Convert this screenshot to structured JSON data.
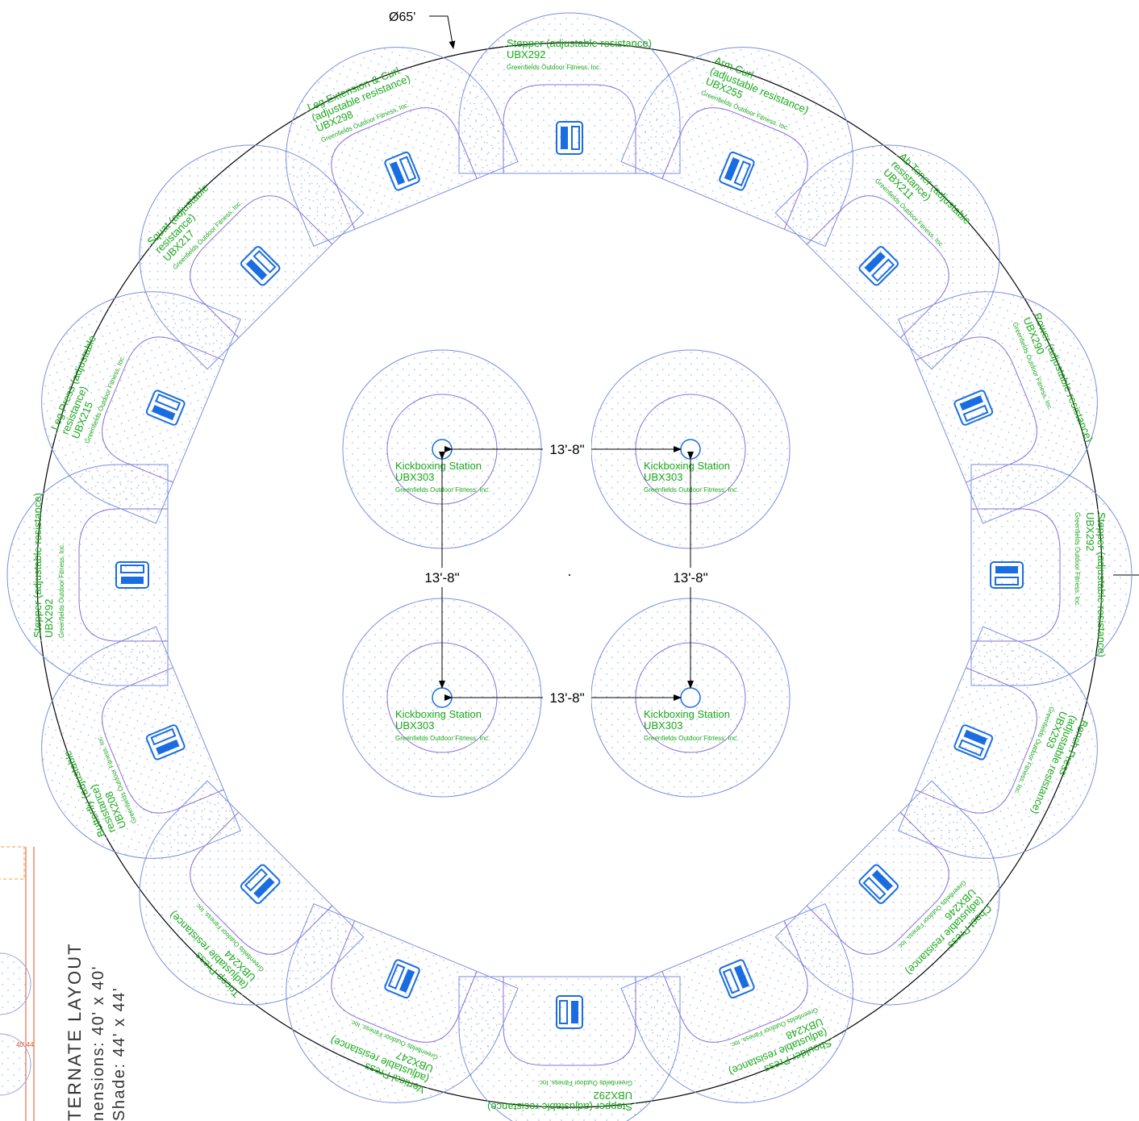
{
  "diameter_label": "Ø65'",
  "dimensions": [
    "13'-8\"",
    "13'-8\"",
    "13'-8\"",
    "13'-8\""
  ],
  "stations": [
    {
      "lines": [
        "Stepper (adjustable resistance)",
        "UBX292",
        "Greenfields Outdoor Fitness, Inc."
      ]
    },
    {
      "lines": [
        "Arm Curl",
        "(adjustable resistance)",
        "UBX255",
        "Greenfields Outdoor Fitness, Inc."
      ]
    },
    {
      "lines": [
        "Ab Toner (adjustable",
        "resistance)",
        "UBX211",
        "Greenfields Outdoor Fitness, Inc."
      ]
    },
    {
      "lines": [
        "Rower (adjustable resistance)",
        "UBX290",
        "Greenfields Outdoor Fitness, Inc."
      ]
    },
    {
      "lines": [
        "Stepper (adjustable resistance)",
        "UBX292",
        "Greenfields Outdoor Fitness, Inc."
      ]
    },
    {
      "lines": [
        "Bench Press",
        "(adjustable resistance)",
        "UBX293",
        "Greenfields Outdoor Fitness, Inc."
      ]
    },
    {
      "lines": [
        "Chest Press",
        "(adjustable resistance)",
        "UBX246",
        "Greenfields Outdoor Fitness, Inc."
      ]
    },
    {
      "lines": [
        "Shoulder Press",
        "(adjustable resistance)",
        "UBX248",
        "Greenfields Outdoor Fitness, Inc."
      ]
    },
    {
      "lines": [
        "Stepper (adjustable resistance)",
        "UBX292",
        "Greenfields Outdoor Fitness, Inc."
      ]
    },
    {
      "lines": [
        "Vertical Press",
        "(adjustable resistance)",
        "UBX247",
        "Greenfields Outdoor Fitness, Inc."
      ]
    },
    {
      "lines": [
        "Tricep Press",
        "(adjustable resistance)",
        "UBX244",
        "Greenfields Outdoor Fitness, Inc."
      ]
    },
    {
      "lines": [
        "Butterfly (adjustable",
        "resistance)",
        "UBX208",
        "Greenfields Outdoor Fitness, Inc."
      ]
    },
    {
      "lines": [
        "Stepper (adjustable resistance)",
        "UBX292",
        "Greenfields Outdoor Fitness, Inc."
      ]
    },
    {
      "lines": [
        "Leg Press (adjustable",
        "resistance)",
        "UBX215",
        "Greenfields Outdoor Fitness, Inc."
      ]
    },
    {
      "lines": [
        "Squat (adjustable",
        "resistance)",
        "UBX217",
        "Greenfields Outdoor Fitness, Inc."
      ]
    },
    {
      "lines": [
        "Leg Extension & Curl",
        "(adjustable resistance)",
        "UBX298",
        "Greenfields Outdoor Fitness, Inc."
      ]
    }
  ],
  "kickboxing": [
    {
      "lines": [
        "Kickboxing Station",
        "UBX303",
        "Greenfields Outdoor Fitness, Inc."
      ]
    },
    {
      "lines": [
        "Kickboxing Station",
        "UBX303",
        "Greenfields Outdoor Fitness, Inc."
      ]
    },
    {
      "lines": [
        "Kickboxing Station",
        "UBX303",
        "Greenfields Outdoor Fitness, Inc."
      ]
    },
    {
      "lines": [
        "Kickboxing Station",
        "UBX303",
        "Greenfields Outdoor Fitness, Inc."
      ]
    }
  ],
  "alternate": {
    "title": "TERNATE LAYOUT",
    "dimensions": "nensions: 40' x 40'",
    "shade": "Shade: 44' x 44'",
    "size_label": "40' 44'"
  }
}
